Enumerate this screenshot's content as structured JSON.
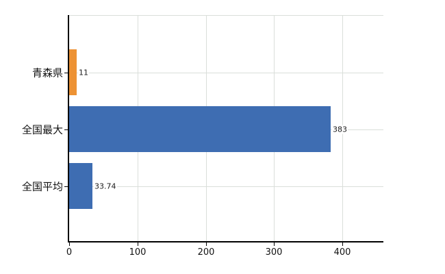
{
  "chart_data": {
    "type": "bar",
    "orientation": "horizontal",
    "title": "",
    "xlabel": "",
    "ylabel": "",
    "categories": [
      "青森県",
      "全国最大",
      "全国平均"
    ],
    "values": [
      11,
      383,
      33.74
    ],
    "value_labels": [
      "11",
      "383",
      "33.74"
    ],
    "bar_colors": [
      "#ED9234",
      "#3E6DB2",
      "#3E6DB2"
    ],
    "xlim": [
      0,
      460
    ],
    "x_ticks": [
      0,
      100,
      200,
      300,
      400
    ],
    "x_tick_labels": [
      "0",
      "100",
      "200",
      "300",
      "400"
    ],
    "grid": true,
    "legend": false
  },
  "colors": {
    "highlight_bar": "#ED9234",
    "default_bar": "#3E6DB2",
    "gridline": "#DADEDA",
    "axis": "#000000",
    "text": "#111111"
  }
}
